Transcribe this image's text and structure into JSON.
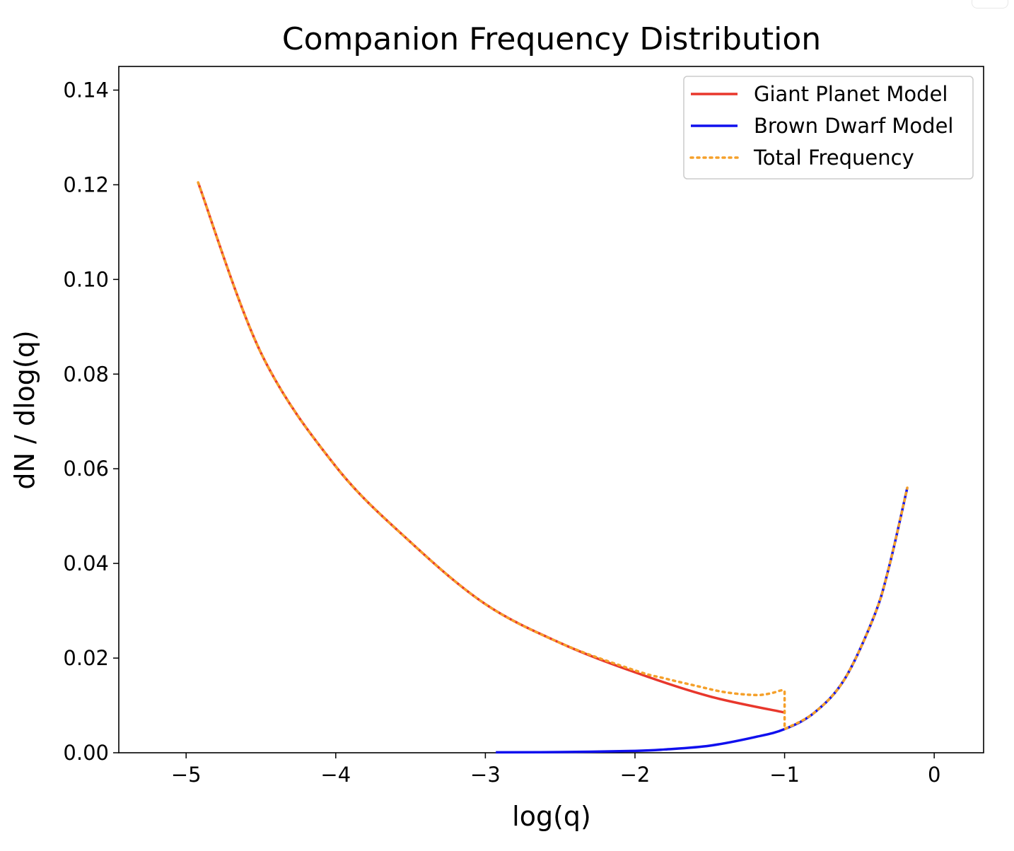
{
  "chart_data": {
    "type": "line",
    "title": "Companion Frequency Distribution",
    "xlabel": "log(q)",
    "ylabel": "dN / dlog(q)",
    "xlim": [
      -5.45,
      0.33
    ],
    "ylim": [
      0,
      0.145
    ],
    "xticks": [
      -5,
      -4,
      -3,
      -2,
      -1,
      0
    ],
    "xtick_labels": [
      "−5",
      "−4",
      "−3",
      "−2",
      "−1",
      "0"
    ],
    "yticks": [
      0.0,
      0.02,
      0.04,
      0.06,
      0.08,
      0.1,
      0.12,
      0.14
    ],
    "ytick_labels": [
      "0.00",
      "0.02",
      "0.04",
      "0.06",
      "0.08",
      "0.10",
      "0.12",
      "0.14"
    ],
    "grid": false,
    "legend_position": "top-right",
    "series": [
      {
        "name": "Giant Planet Model",
        "color": "#e8372c",
        "style": "solid",
        "x": [
          -4.92,
          -4.5,
          -4.0,
          -3.5,
          -3.0,
          -2.5,
          -2.0,
          -1.5,
          -1.0
        ],
        "y": [
          0.1205,
          0.0845,
          0.0605,
          0.0445,
          0.0314,
          0.0232,
          0.017,
          0.0119,
          0.0085
        ]
      },
      {
        "name": "Brown Dwarf Model",
        "color": "#1010ee",
        "style": "solid",
        "x": [
          -2.93,
          -2.5,
          -2.0,
          -1.8,
          -1.5,
          -1.2,
          -1.0,
          -0.8,
          -0.6,
          -0.4,
          -0.3,
          -0.18
        ],
        "y": [
          0.0001,
          0.00015,
          0.0004,
          0.0007,
          0.0015,
          0.0033,
          0.005,
          0.0085,
          0.0155,
          0.029,
          0.0395,
          0.056
        ]
      },
      {
        "name": "Total Frequency",
        "color": "#f5a02a",
        "style": "dotted",
        "x": [
          -4.92,
          -4.5,
          -4.0,
          -3.5,
          -3.0,
          -2.5,
          -2.0,
          -1.8,
          -1.6,
          -1.4,
          -1.2,
          -1.1,
          -1.02,
          -1.0,
          -1.0,
          -0.8,
          -0.6,
          -0.4,
          -0.3,
          -0.18
        ],
        "y": [
          0.1205,
          0.0845,
          0.0605,
          0.0445,
          0.0314,
          0.0232,
          0.0174,
          0.0157,
          0.0142,
          0.0128,
          0.0122,
          0.0125,
          0.0132,
          0.013,
          0.005,
          0.0085,
          0.0155,
          0.029,
          0.0395,
          0.056
        ]
      }
    ]
  }
}
